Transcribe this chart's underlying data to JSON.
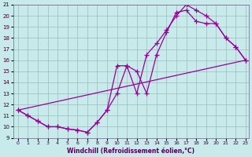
{
  "bg_color": "#c8eaea",
  "line_color": "#990099",
  "xlabel": "Windchill (Refroidissement éolien,°C)",
  "xlim_min": 0,
  "xlim_max": 23,
  "ylim_min": 9,
  "ylim_max": 21,
  "xticks": [
    0,
    1,
    2,
    3,
    4,
    5,
    6,
    7,
    8,
    9,
    10,
    11,
    12,
    13,
    14,
    15,
    16,
    17,
    18,
    19,
    20,
    21,
    22,
    23
  ],
  "yticks": [
    9,
    10,
    11,
    12,
    13,
    14,
    15,
    16,
    17,
    18,
    19,
    20,
    21
  ],
  "line1_x": [
    0,
    1,
    2,
    3,
    4,
    5,
    6,
    7,
    8,
    9,
    10,
    11,
    12,
    13,
    14,
    15,
    16,
    17,
    18,
    19,
    20,
    21,
    22,
    23
  ],
  "line1_y": [
    11.5,
    11.0,
    10.5,
    10.0,
    10.0,
    9.8,
    9.7,
    9.5,
    10.4,
    11.5,
    15.5,
    15.5,
    13.0,
    16.5,
    17.5,
    18.7,
    20.0,
    21.0,
    20.5,
    20.0,
    19.3,
    18.0,
    17.2,
    16.0
  ],
  "line2_x": [
    0,
    1,
    2,
    3,
    4,
    5,
    6,
    7,
    8,
    9,
    10,
    11,
    12,
    13,
    14,
    15,
    16,
    17,
    18,
    19,
    20,
    21,
    22,
    23
  ],
  "line2_y": [
    11.5,
    11.0,
    10.5,
    10.0,
    10.0,
    9.8,
    9.7,
    9.5,
    10.4,
    11.5,
    13.0,
    15.5,
    15.0,
    13.0,
    16.5,
    18.5,
    20.3,
    20.5,
    19.5,
    19.3,
    19.3,
    18.0,
    17.2,
    16.0
  ],
  "line3_x": [
    0,
    23
  ],
  "line3_y": [
    11.5,
    16.0
  ]
}
